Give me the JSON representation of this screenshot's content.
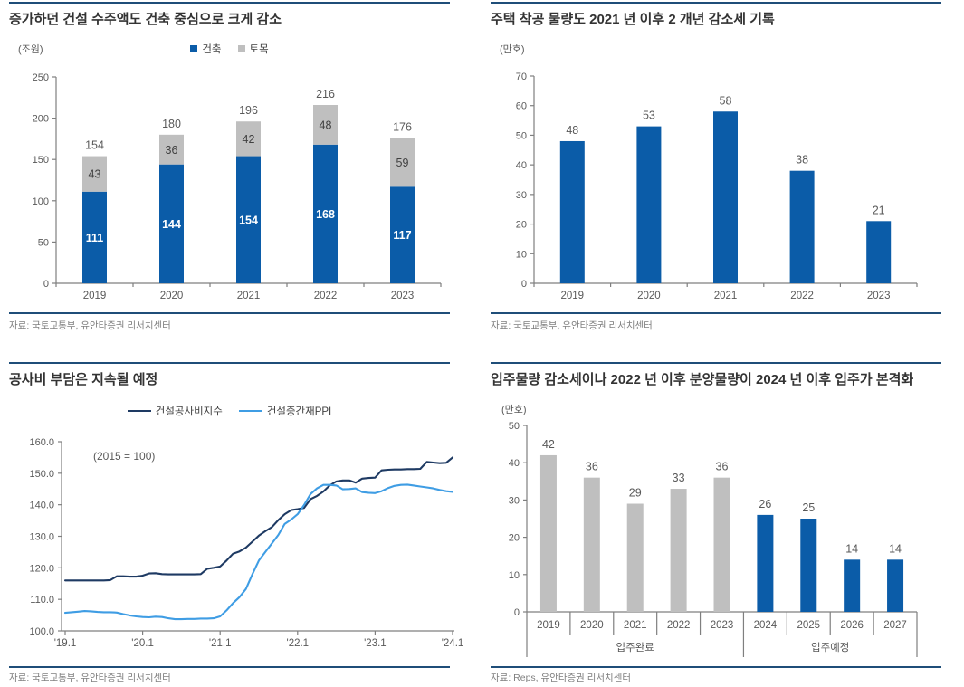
{
  "colors": {
    "rule_navy": "#1F4E79",
    "bar_blue": "#0B5CA8",
    "bar_gray": "#BFBFBF",
    "line_navy": "#1E3A63",
    "line_blue": "#3F9DE4",
    "axis_gray": "#7F7F7F",
    "tick_text": "#595959",
    "title_text": "#333333",
    "source_text": "#808080",
    "gray_label_text": "#404040",
    "white_label_text": "#FFFFFF"
  },
  "chart_data": [
    {
      "id": "construction-orders",
      "type": "bar",
      "stacked": true,
      "title": "증가하던 건설 수주액도 건축 중심으로 크게 감소",
      "unit_label": "(조원)",
      "source": "자료: 국토교통부, 유안타증권 리서치센터",
      "categories": [
        "2019",
        "2020",
        "2021",
        "2022",
        "2023"
      ],
      "series": [
        {
          "name": "건축",
          "color_key": "bar_blue",
          "values": [
            111,
            144,
            154,
            168,
            117
          ]
        },
        {
          "name": "토목",
          "color_key": "bar_gray",
          "values": [
            43,
            36,
            42,
            48,
            59
          ]
        }
      ],
      "totals": [
        154,
        180,
        196,
        216,
        176
      ],
      "ylim": [
        0,
        250
      ],
      "ytick_step": 50,
      "legend_position": "top",
      "grid": false
    },
    {
      "id": "housing-starts",
      "type": "bar",
      "stacked": false,
      "title": "주택 착공 물량도 2021 년 이후 2 개년 감소세 기록",
      "unit_label": "(만호)",
      "source": "자료: 국토교통부, 유안타증권 리서치센터",
      "categories": [
        "2019",
        "2020",
        "2021",
        "2022",
        "2023"
      ],
      "series": [
        {
          "name": "주택 착공 물량",
          "color_key": "bar_blue",
          "values": [
            48,
            53,
            58,
            38,
            21
          ]
        }
      ],
      "bar_labels": [
        "48",
        "53",
        "58",
        "38",
        "21"
      ],
      "ylim": [
        0,
        70
      ],
      "ytick_step": 10,
      "grid": false
    },
    {
      "id": "construction-cost-index",
      "type": "line",
      "title": "공사비 부담은 지속될 예정",
      "annotation": "(2015 = 100)",
      "source": "자료: 국토교통부, 유안타증권 리서치센터",
      "x_tick_labels": [
        "'19.1",
        "'20.1",
        "'21.1",
        "'22.1",
        "'23.1",
        "'24.1"
      ],
      "x_start": "2019.01",
      "x_end": "2024.01",
      "ylim": [
        100,
        160
      ],
      "ytick_step": 10,
      "ytick_decimals": 1,
      "legend_position": "top",
      "grid": false,
      "series": [
        {
          "name": "건설공사비지수",
          "color_key": "line_navy",
          "values": [
            116.0,
            116.0,
            116.0,
            116.0,
            116.0,
            116.0,
            116.0,
            116.1,
            117.3,
            117.3,
            117.2,
            117.2,
            117.5,
            118.2,
            118.3,
            118.0,
            117.9,
            117.9,
            117.9,
            117.9,
            117.9,
            118.0,
            119.7,
            120.0,
            120.4,
            122.3,
            124.5,
            125.2,
            126.4,
            128.3,
            130.2,
            131.6,
            132.9,
            135.1,
            137.0,
            138.3,
            138.6,
            139.0,
            141.8,
            142.8,
            144.2,
            146.2,
            147.4,
            147.7,
            147.7,
            147.0,
            148.3,
            148.5,
            148.6,
            150.9,
            151.1,
            151.2,
            151.2,
            151.3,
            151.3,
            151.4,
            153.6,
            153.4,
            153.2,
            153.3,
            155.0
          ]
        },
        {
          "name": "건설중간재PPI",
          "color_key": "line_blue",
          "values": [
            105.7,
            105.9,
            106.1,
            106.3,
            106.2,
            106.0,
            105.9,
            105.9,
            105.8,
            105.3,
            104.9,
            104.6,
            104.4,
            104.3,
            104.5,
            104.4,
            104.0,
            103.7,
            103.7,
            103.8,
            103.8,
            103.9,
            103.9,
            104.0,
            104.6,
            106.5,
            108.8,
            110.7,
            113.3,
            118.0,
            122.3,
            125.0,
            127.7,
            130.4,
            133.9,
            135.3,
            137.0,
            139.9,
            143.4,
            145.2,
            146.3,
            146.3,
            146.1,
            144.9,
            145.0,
            145.2,
            144.0,
            143.8,
            143.7,
            144.3,
            145.3,
            146.0,
            146.3,
            146.4,
            146.1,
            145.8,
            145.5,
            145.2,
            144.7,
            144.3,
            144.1
          ]
        }
      ]
    },
    {
      "id": "move-in-volume",
      "type": "bar",
      "stacked": false,
      "title": "입주물량 감소세이나 2022 년 이후 분양물량이 2024 년 이후 입주가 본격화",
      "unit_label": "(만호)",
      "source": "자료: Reps, 유안타증권 리서치센터",
      "categories": [
        "2019",
        "2020",
        "2021",
        "2022",
        "2023",
        "2024",
        "2025",
        "2026",
        "2027"
      ],
      "series": [
        {
          "name": "입주물량",
          "values": [
            42,
            36,
            29,
            33,
            36,
            26,
            25,
            14,
            14
          ]
        }
      ],
      "bar_labels": [
        "42",
        "36",
        "29",
        "33",
        "36",
        "26",
        "25",
        "14",
        "14"
      ],
      "bar_color_keys": [
        "bar_gray",
        "bar_gray",
        "bar_gray",
        "bar_gray",
        "bar_gray",
        "bar_blue",
        "bar_blue",
        "bar_blue",
        "bar_blue"
      ],
      "groups": [
        {
          "label": "입주완료",
          "from": 0,
          "to": 4
        },
        {
          "label": "입주예정",
          "from": 5,
          "to": 8
        }
      ],
      "ylim": [
        0,
        50
      ],
      "ytick_step": 10,
      "axis_table": true,
      "grid": false
    }
  ]
}
